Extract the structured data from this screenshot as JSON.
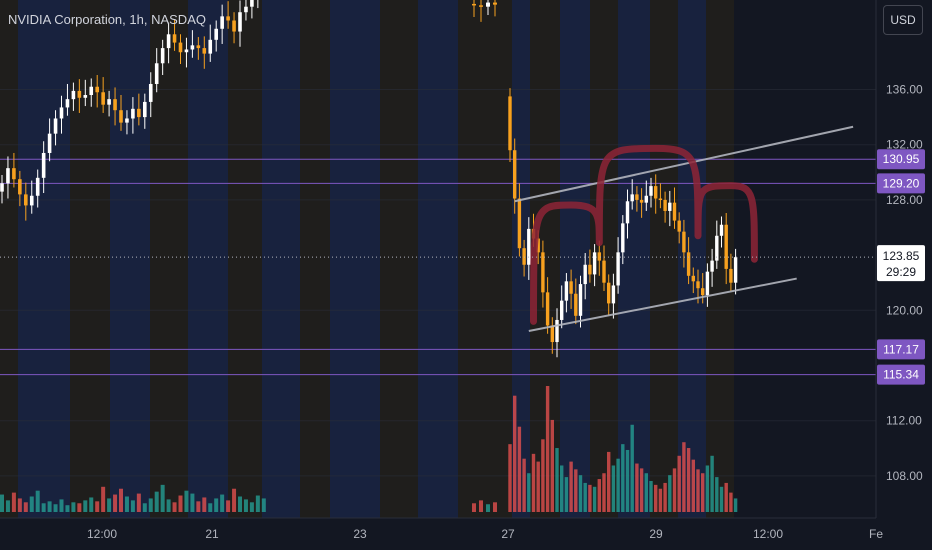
{
  "header": {
    "title": "NVIDIA Corporation, 1h, NASDAQ",
    "currency": "USD"
  },
  "colors": {
    "background": "#131722",
    "up_candle": "#ffffff",
    "down_candle": "#f7a11f",
    "volume_up": "#26a69a",
    "volume_down": "#ef5350",
    "level_line": "#7e57c2",
    "level_tag": "#7e57c2",
    "channel_line": "#b2b5be",
    "pattern_stroke": "#8e2436",
    "session_blue": "#1e2b55",
    "session_orange": "#2a2418"
  },
  "chart_data": {
    "type": "candlestick",
    "title": "NVIDIA Corporation, 1h, NASDAQ",
    "y_axis": {
      "range": [
        105.5,
        142
      ],
      "ticks": [
        "136.00",
        "132.00",
        "128.00",
        "120.00",
        "112.00",
        "108.00"
      ]
    },
    "x_axis": {
      "ticks": [
        "12:00",
        "21",
        "23",
        "27",
        "29",
        "12:00",
        "Fe"
      ]
    },
    "horizontal_levels": [
      {
        "label": "130.95",
        "value": 130.95
      },
      {
        "label": "129.20",
        "value": 129.2
      },
      {
        "label": "117.17",
        "value": 117.17
      },
      {
        "label": "115.34",
        "value": 115.34
      }
    ],
    "last_price": {
      "label": "123.85",
      "value": 123.85,
      "countdown": "29:29"
    },
    "channel": {
      "upper": {
        "from": {
          "bar": 1,
          "price": 127.9
        },
        "to": {
          "bar": 73,
          "price": 133.3
        }
      },
      "lower": {
        "from": {
          "bar": 4,
          "price": 118.5
        },
        "to": {
          "bar": 61,
          "price": 122.3
        }
      }
    },
    "pattern_arcs": [
      {
        "from": {
          "bar": 5,
          "price": 119.2
        },
        "peak": {
          "bar": 13,
          "price": 127.2
        },
        "to": {
          "bar": 19,
          "price": 124.9
        }
      },
      {
        "from": {
          "bar": 19,
          "price": 124.9
        },
        "peak": {
          "bar": 31,
          "price": 131.3
        },
        "to": {
          "bar": 40,
          "price": 125.4
        }
      },
      {
        "from": {
          "bar": 40,
          "price": 125.4
        },
        "peak": {
          "bar": 47,
          "price": 128.6
        },
        "to": {
          "bar": 52,
          "price": 123.7
        }
      }
    ],
    "segment_a": {
      "open_start": 128.6,
      "closes": [
        129.2,
        130.3,
        129.5,
        128.4,
        127.6,
        128.3,
        129.6,
        131.4,
        132.8,
        133.9,
        134.7,
        135.3,
        135.9,
        135.4,
        135.6,
        136.2,
        135.8,
        134.9,
        135.3,
        134.5,
        133.6,
        133.9,
        134.6,
        134.0,
        135.1,
        136.4,
        137.9,
        139.0,
        140.0,
        139.4,
        138.7,
        138.9,
        139.2,
        139.0,
        138.6,
        139.6,
        140.4,
        141.3,
        141.0,
        140.2,
        141.6,
        142.0,
        143.0,
        144.5,
        145.2
      ]
    },
    "segment_b": {
      "open_start": 142.2,
      "closes": [
        142.1,
        142.0,
        142.3,
        142.15
      ]
    },
    "segment_c": {
      "open_start": 135.5,
      "closes": [
        131.6,
        128.1,
        124.5,
        123.3,
        125.9,
        125.2,
        124.2,
        121.3,
        118.9,
        117.7,
        119.3,
        120.7,
        122.1,
        121.2,
        119.6,
        121.9,
        123.3,
        122.6,
        124.2,
        123.6,
        122.0,
        120.5,
        121.8,
        124.2,
        126.3,
        127.9,
        128.4,
        128.0,
        127.8,
        128.3,
        129.0,
        128.1,
        128.0,
        127.2,
        127.8,
        126.5,
        125.7,
        124.2,
        122.5,
        122.1,
        121.6,
        121.1,
        122.8,
        123.6,
        125.4,
        126.2,
        123.0,
        122.0,
        123.85
      ]
    },
    "volumes": {
      "segment_a": [
        18,
        12,
        20,
        14,
        10,
        16,
        22,
        9,
        11,
        8,
        13,
        7,
        10,
        9,
        12,
        15,
        11,
        26,
        14,
        18,
        24,
        16,
        12,
        19,
        9,
        14,
        21,
        28,
        13,
        10,
        17,
        22,
        19,
        11,
        15,
        9,
        14,
        18,
        12,
        24,
        16,
        13,
        10,
        17,
        14
      ],
      "segment_b": [
        9,
        12,
        8,
        10
      ],
      "segment_c": [
        70,
        120,
        88,
        55,
        40,
        60,
        52,
        75,
        130,
        95,
        66,
        48,
        36,
        52,
        44,
        38,
        30,
        28,
        26,
        34,
        40,
        62,
        48,
        55,
        70,
        64,
        90,
        50,
        45,
        40,
        32,
        28,
        24,
        30,
        38,
        45,
        58,
        72,
        66,
        54,
        44,
        40,
        48,
        58,
        36,
        26,
        30,
        20,
        14
      ]
    },
    "volume_scale_max": 130
  }
}
